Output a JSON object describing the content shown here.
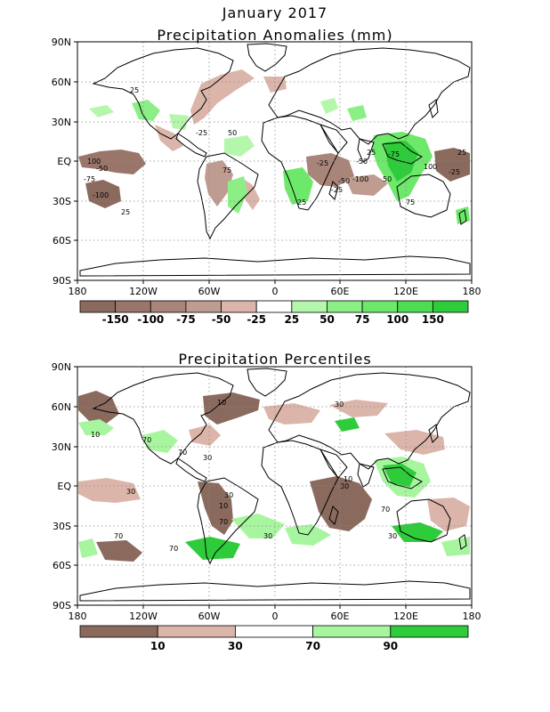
{
  "header": {
    "title": "January 2017"
  },
  "colors": {
    "dry_dark": "#8b6a5e",
    "dry_mid": "#b08d82",
    "dry_light": "#dcb5aa",
    "wet_light": "#a8f5a0",
    "wet_mid": "#6ee86a",
    "wet_dark": "#2ecc3a",
    "land_outline": "#000000"
  },
  "axes": {
    "lat_ticks": [
      "90N",
      "60N",
      "30N",
      "EQ",
      "30S",
      "60S",
      "90S"
    ],
    "lon_ticks": [
      "180",
      "120W",
      "60W",
      "0",
      "60E",
      "120E",
      "180"
    ]
  },
  "anomaly_map": {
    "title": "Precipitation Anomalies (mm)",
    "legend": {
      "labels": [
        "-150",
        "-100",
        "-75",
        "-50",
        "-25",
        "25",
        "50",
        "75",
        "100",
        "150"
      ],
      "colors": [
        "#8b6a5e",
        "#9a766a",
        "#a98479",
        "#bf9c90",
        "#dcb5aa",
        "#ffffff",
        "#b4f7ac",
        "#8bef86",
        "#6ee86a",
        "#4ddc52",
        "#2ecc3a"
      ]
    },
    "contour_labels": [
      "25",
      "-25",
      "-50",
      "-75",
      "-100",
      "25",
      "50",
      "75",
      "100",
      "-25",
      "-50",
      "25",
      "-25",
      "-50",
      "-75",
      "-100",
      "25",
      "50",
      "75",
      "100",
      "-25",
      "25"
    ]
  },
  "percentile_map": {
    "title": "Precipitation Percentiles",
    "legend": {
      "labels": [
        "10",
        "30",
        "70",
        "90"
      ],
      "colors": [
        "#8b6a5e",
        "#dcb5aa",
        "#ffffff",
        "#a8f5a0",
        "#2ecc3a"
      ]
    },
    "contour_labels": [
      "10",
      "30",
      "70",
      "10",
      "30",
      "70",
      "30",
      "70",
      "30",
      "10",
      "70",
      "30",
      "70",
      "30",
      "10",
      "70",
      "30"
    ]
  }
}
